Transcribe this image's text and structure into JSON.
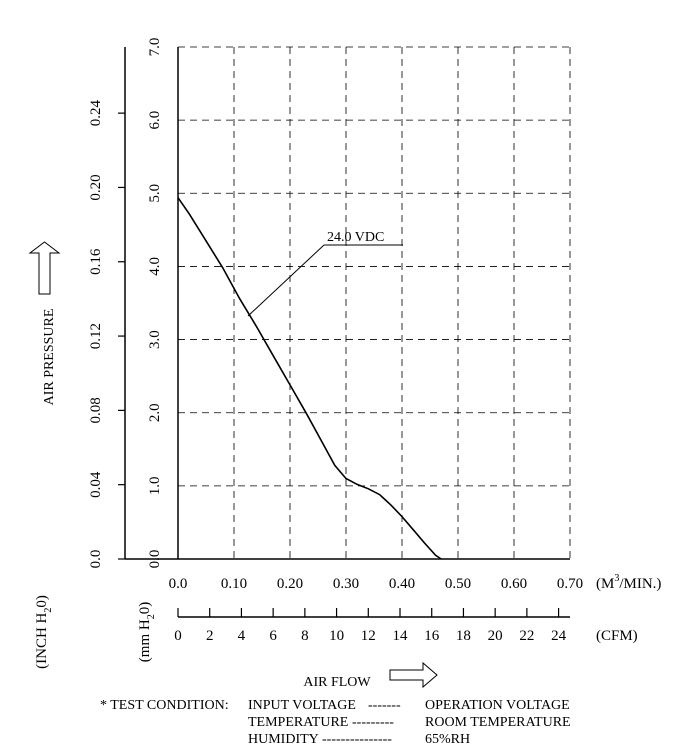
{
  "chart_data": {
    "type": "line",
    "series": [
      {
        "name": "24.0 VDC",
        "points": [
          [
            0.0,
            4.94
          ],
          [
            0.02,
            4.72
          ],
          [
            0.05,
            4.35
          ],
          [
            0.08,
            3.98
          ],
          [
            0.11,
            3.56
          ],
          [
            0.14,
            3.18
          ],
          [
            0.17,
            2.78
          ],
          [
            0.2,
            2.38
          ],
          [
            0.23,
            1.98
          ],
          [
            0.26,
            1.56
          ],
          [
            0.28,
            1.28
          ],
          [
            0.3,
            1.1
          ],
          [
            0.32,
            1.02
          ],
          [
            0.34,
            0.96
          ],
          [
            0.36,
            0.88
          ],
          [
            0.38,
            0.74
          ],
          [
            0.4,
            0.58
          ],
          [
            0.42,
            0.4
          ],
          [
            0.44,
            0.22
          ],
          [
            0.46,
            0.05
          ],
          [
            0.47,
            0.0
          ]
        ]
      }
    ],
    "series_label": "24.0 VDC",
    "x_axis": {
      "unit_label": "(M",
      "unit_sup": "3",
      "unit_suffix": "/MIN.)",
      "range": [
        0.0,
        0.7
      ],
      "ticks": [
        "0.0",
        "0.10",
        "0.20",
        "0.30",
        "0.40",
        "0.50",
        "0.60",
        "0.70"
      ]
    },
    "cfm_axis": {
      "unit_label": "(CFM)",
      "range": [
        0,
        24.72
      ],
      "ticks": [
        "0",
        "2",
        "4",
        "6",
        "8",
        "10",
        "12",
        "14",
        "16",
        "18",
        "20",
        "22",
        "24"
      ]
    },
    "y_axis_mm": {
      "unit_pre": "(mm H",
      "unit_sub": "2",
      "unit_post": "0)",
      "range": [
        0.0,
        7.0
      ],
      "ticks": [
        "0.0",
        "1.0",
        "2.0",
        "3.0",
        "4.0",
        "5.0",
        "6.0",
        "7.0"
      ]
    },
    "y_axis_inch": {
      "unit_pre": "(INCH H",
      "unit_sub": "2",
      "unit_post": "0)",
      "range": [
        0.0,
        0.2756
      ],
      "ticks": [
        "0.0",
        "0.04",
        "0.08",
        "0.12",
        "0.16",
        "0.20",
        "0.24"
      ]
    },
    "ylabel": "AIR PRESSURE",
    "xlabel": "AIR FLOW",
    "grid": true
  },
  "test_condition": {
    "heading": "* TEST CONDITION:",
    "rows": [
      {
        "label": "INPUT VOLTAGE",
        "dashes": "-------",
        "value": "OPERATION VOLTAGE"
      },
      {
        "label": "TEMPERATURE",
        "dashes": "---------",
        "value": "ROOM TEMPERATURE"
      },
      {
        "label": "HUMIDITY",
        "dashes": "---------------",
        "value": "65%RH"
      }
    ]
  }
}
